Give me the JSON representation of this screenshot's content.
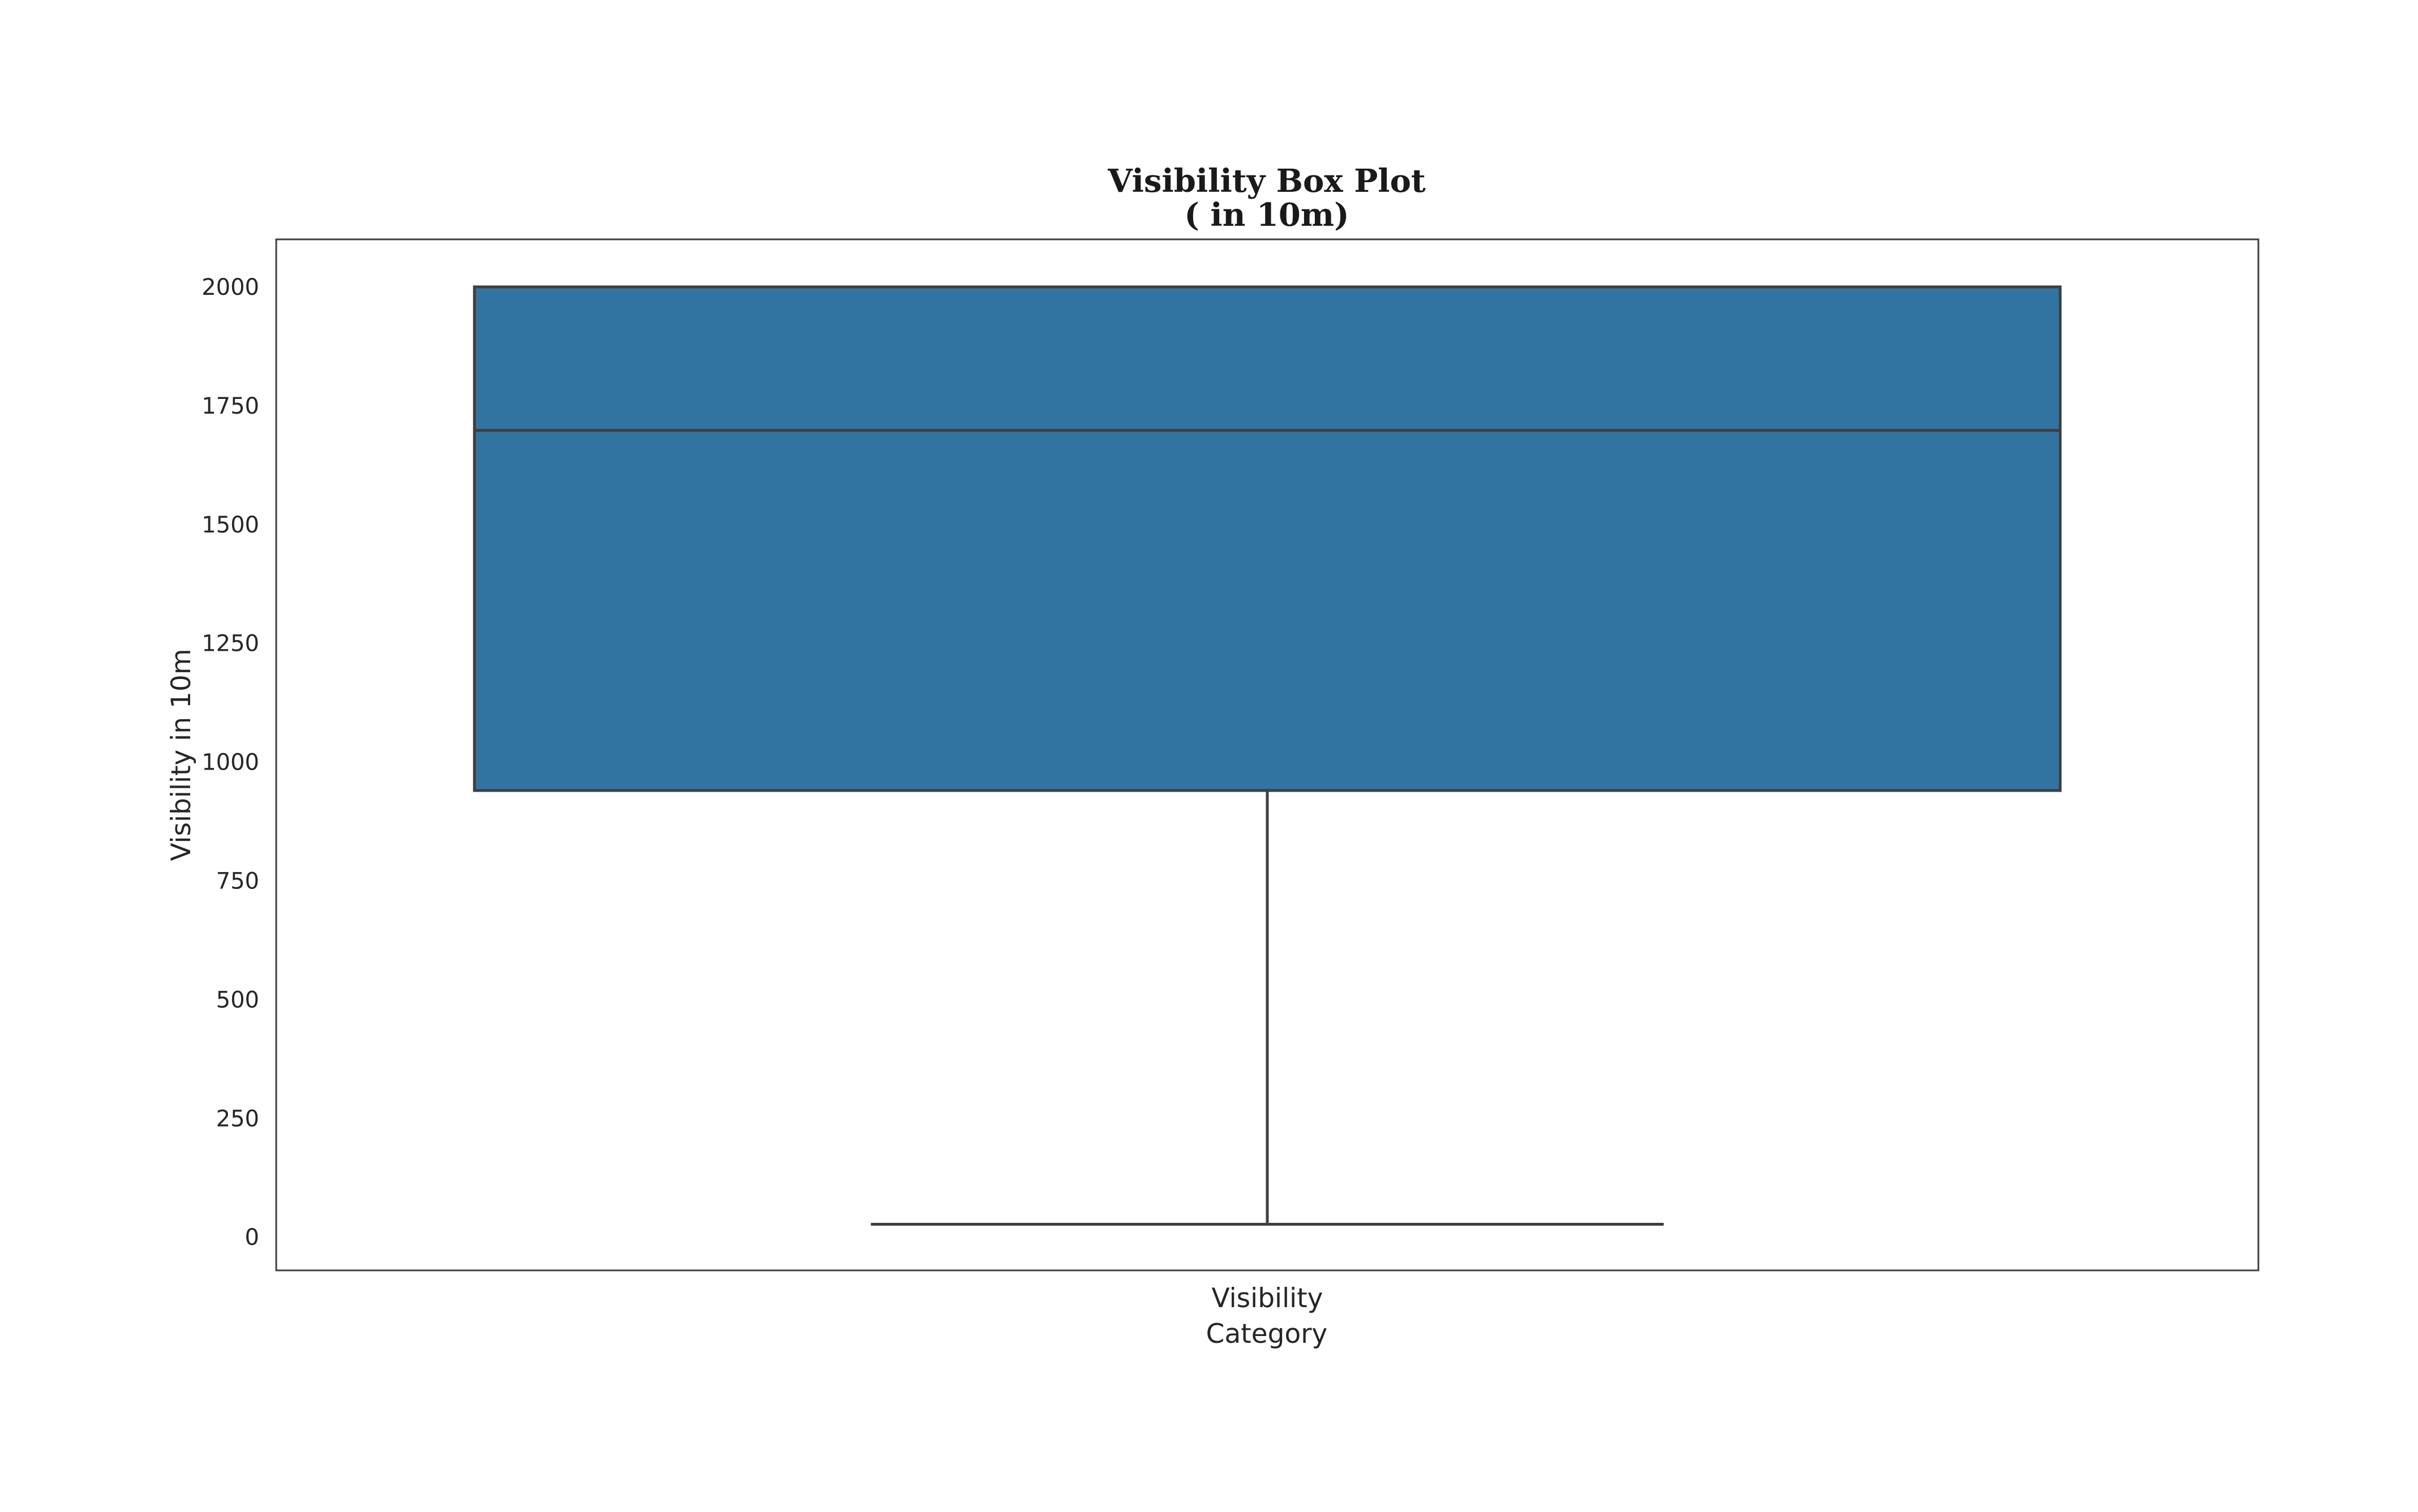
{
  "chart_data": {
    "type": "box",
    "title_lines": [
      "Visibility Box Plot",
      "( in 10m)"
    ],
    "xlabel": "Category",
    "ylabel": "Visibility in 10m",
    "categories": [
      "Visibility"
    ],
    "boxes": [
      {
        "category": "Visibility",
        "whisker_low": 27,
        "q1": 940,
        "median": 1698,
        "q3": 2000,
        "whisker_high": 2000
      }
    ],
    "ylim": [
      -70,
      2100
    ],
    "yticks": [
      0,
      250,
      500,
      750,
      1000,
      1250,
      1500,
      1750,
      2000
    ],
    "grid": false,
    "legend": "none",
    "colors": {
      "box_fill": "#3274a1",
      "line": "#3f3f3f",
      "frame": "#3f3f3f",
      "text": "#262626"
    }
  }
}
